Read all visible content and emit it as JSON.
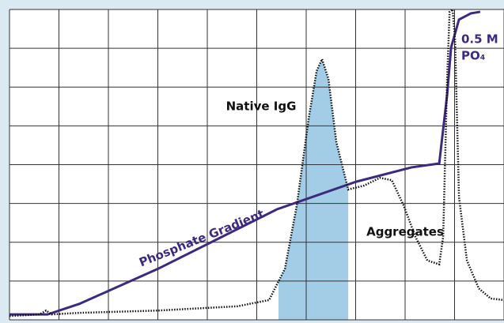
{
  "chart_data": {
    "type": "line",
    "xlim": [
      0,
      100
    ],
    "ylim": [
      0,
      80
    ],
    "xticks": [
      0,
      10,
      20,
      30,
      40,
      50,
      60,
      70,
      80,
      90,
      100
    ],
    "yticks": [
      0,
      10,
      20,
      30,
      40,
      50,
      60,
      70,
      80
    ],
    "grid": true,
    "series": [
      {
        "name": "Phosphate Gradient",
        "color": "#3d2a7d",
        "style": "solid",
        "x": [
          0,
          7.7,
          14.1,
          30.1,
          54.1,
          70.1,
          81.3,
          86.9,
          88.5,
          89.3,
          90.9,
          93.3,
          95.2
        ],
        "values": [
          1.4,
          1.4,
          4.1,
          13.2,
          28.5,
          35.6,
          39.3,
          40.3,
          58.0,
          70.2,
          77.4,
          79.0,
          79.4
        ]
      },
      {
        "color": "#111111",
        "style": "dotted",
        "x": [
          0,
          6.1,
          7.4,
          8.5,
          14.1,
          30.1,
          46.1,
          52.5,
          55.7,
          58.1,
          60.5,
          62.1,
          63.2,
          64.5,
          66.1,
          68.5,
          71.7,
          74.9,
          77.3,
          79.7,
          82.1,
          84.5,
          86.9,
          87.7,
          88.5,
          89.0,
          89.6,
          90.1,
          90.9,
          92.5,
          94.9,
          97.3,
          100
        ],
        "values": [
          1.0,
          1.4,
          2.4,
          1.4,
          1.8,
          2.4,
          3.5,
          5.1,
          13.2,
          29.5,
          51.9,
          64.1,
          67.2,
          62.1,
          45.8,
          33.6,
          34.6,
          36.6,
          36.0,
          29.5,
          21.4,
          15.3,
          14.3,
          21.4,
          62.1,
          79.4,
          80.0,
          72.3,
          31.6,
          15.3,
          8.1,
          5.5,
          5.1
        ]
      }
    ],
    "shaded_range": [
      54.4,
      68.5
    ],
    "shade_color": "#a3cce6",
    "annotations": [
      "Native IgG",
      "Aggregates",
      "0.5 M",
      "PO₄"
    ]
  }
}
